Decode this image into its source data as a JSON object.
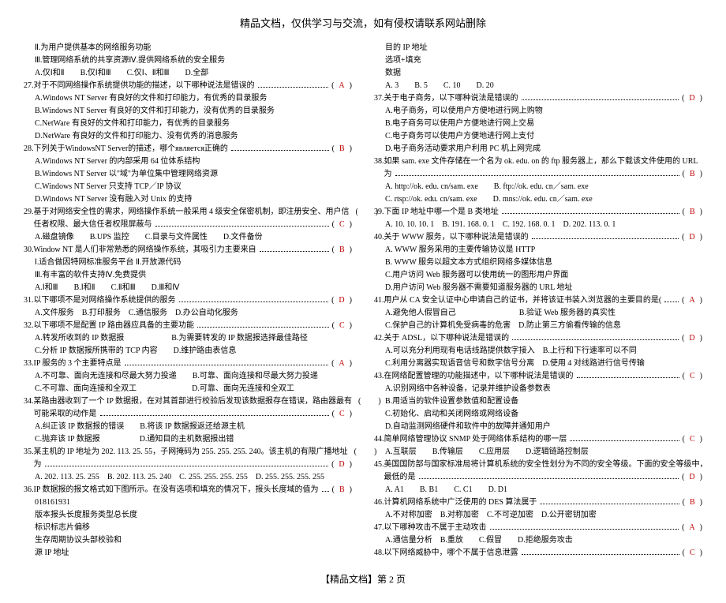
{
  "header": "精品文档，仅供学习与交流，如有侵权请联系网站删除",
  "footer": "【精品文档】第 2 页",
  "left": [
    {
      "t": "plain",
      "cls": "indent",
      "text": "Ⅱ.为用户提供基本的网络服务功能"
    },
    {
      "t": "plain",
      "cls": "indent",
      "text": "Ⅲ.管理网络系统的共享资源Ⅳ.提供网络系统的安全服务"
    },
    {
      "t": "plain",
      "cls": "indent",
      "text": "A.仅Ⅰ和Ⅱ　　B.仅Ⅰ和Ⅲ　　C.仅Ⅰ、Ⅱ和Ⅲ　　D.全部"
    },
    {
      "t": "q",
      "text": "27.对于不同网络操作系统提供功能的描述，以下哪种说法是错误的",
      "ans": "A"
    },
    {
      "t": "plain",
      "cls": "indent",
      "text": "A.Windows NT Server 有良好的文件和打印能力，有优秀的目录服务"
    },
    {
      "t": "plain",
      "cls": "indent",
      "text": "B.Windows NT Server 有良好的文件和打印能力，没有优秀的目录服务"
    },
    {
      "t": "plain",
      "cls": "indent",
      "text": "C.NetWare 有良好的文件和打印能力，有优秀的目录服务"
    },
    {
      "t": "plain",
      "cls": "indent",
      "text": "D.NetWare 有良好的文件和打印能力、没有优秀的消息服务"
    },
    {
      "t": "q",
      "text": "28.下列关于WindowsNT Server的描述，哪个является正确的",
      "ans": "B"
    },
    {
      "t": "plain",
      "cls": "indent",
      "text": "A.Windows NT Server 的内部采用 64 位体系结构"
    },
    {
      "t": "plain",
      "cls": "indent",
      "text": "B.Windows NT Server 以\"域\"为单位集中管理网络资源"
    },
    {
      "t": "plain",
      "cls": "indent",
      "text": "C.Windows NT Server 只支持 TCP／IP 协议"
    },
    {
      "t": "plain",
      "cls": "indent",
      "text": "D.Windows NT Server 没有融入对 Unix 的支持"
    },
    {
      "t": "q",
      "text": "29.基于对网络安全性的需求，网络操作系统一般采用 4 级安全保密机制，即注册安全、用户信",
      "ans": ""
    },
    {
      "t": "q",
      "text": "　 任者权限、最大信任者权限屏蔽与",
      "ans": "C"
    },
    {
      "t": "plain",
      "cls": "indent",
      "text": "A.磁盘镜像　　B.UPS 监控　　C.目录与文件属性　　D.文件备份"
    },
    {
      "t": "q",
      "text": "30.Window NT 是人们非常熟悉的网络操作系统，其吸引力主要来自",
      "ans": "B"
    },
    {
      "t": "plain",
      "cls": "indent",
      "text": "Ⅰ.适合做因特网标准服务平台 Ⅱ.开放源代码"
    },
    {
      "t": "plain",
      "cls": "indent",
      "text": "Ⅲ.有丰富的软件支持Ⅳ.免费提供"
    },
    {
      "t": "plain",
      "cls": "indent",
      "text": "A.Ⅰ和Ⅲ　　B.Ⅰ和Ⅱ　　C.Ⅱ和Ⅲ　　D.Ⅲ和Ⅳ"
    },
    {
      "t": "q",
      "text": "31.以下哪项不是对网络操作系统提供的服务",
      "ans": "D"
    },
    {
      "t": "plain",
      "cls": "indent",
      "text": "A.文件服务　B.打印服务　C.通信服务　D.办公自动化服务"
    },
    {
      "t": "q",
      "text": "32.以下哪项不是配置 IP 路由器应具备的主要功能",
      "ans": "C"
    },
    {
      "t": "plain",
      "cls": "indent",
      "text": "A.转发所收到的 IP 数据报　　　　　　B.为需要转发的 IP 数据报选择最佳路径"
    },
    {
      "t": "plain",
      "cls": "indent",
      "text": "C.分析 IP 数据报所携带的 TCP 内容　　D.维护路由表信息"
    },
    {
      "t": "q",
      "text": "33.IP 服务的 3 个主要特点是",
      "ans": "A"
    },
    {
      "t": "plain",
      "cls": "indent",
      "text": "A.不可靠、面向无连接和尽最大努力投递　　B.可靠、面向连接和尽最大努力投递"
    },
    {
      "t": "plain",
      "cls": "indent",
      "text": "C.不可靠、面向连接和全双工　　　　　　　D.可靠、面向无连接和全双工"
    },
    {
      "t": "q",
      "text": "34.某路由器收到了一个 IP 数据报，在对其首部进行校验后发现该数据报存在错误，路由器最有",
      "ans": ""
    },
    {
      "t": "q",
      "text": "　 可能采取的动作是",
      "ans": "C"
    },
    {
      "t": "plain",
      "cls": "indent",
      "text": "A.纠正该 IP 数据报的错误　　B.将该 IP 数据报返还给源主机"
    },
    {
      "t": "plain",
      "cls": "indent",
      "text": "C.抛弃该 IP 数据报　　　　　D.通知目的主机数据报出错"
    },
    {
      "t": "q",
      "text": "35.某主机的 IP 地址为 202. 113. 25. 55，子网掩码为 255. 255. 255. 240。该主机的有限广播地址",
      "ans": ""
    },
    {
      "t": "q",
      "text": "　 为",
      "ans": "D"
    },
    {
      "t": "plain",
      "cls": "indent",
      "text": "A. 202. 113. 25. 255　B. 202. 113. 25. 240　C. 255. 255. 255. 255　D. 255. 255. 255. 255"
    },
    {
      "t": "q",
      "text": "36.IP 数据报的报文格式如下图所示。在没有选项和填充的情况下，报头长度域的值为",
      "ans": "B"
    },
    {
      "t": "plain",
      "cls": "indent",
      "text": "018161931"
    },
    {
      "t": "plain",
      "cls": "indent",
      "text": "版本报头长度服务类型总长度"
    },
    {
      "t": "plain",
      "cls": "indent",
      "text": "标识标志片偏移"
    },
    {
      "t": "plain",
      "cls": "indent",
      "text": "生存周期协议头部校验和"
    },
    {
      "t": "plain",
      "cls": "indent",
      "text": "源 IP 地址"
    }
  ],
  "right": [
    {
      "t": "plain",
      "cls": "indent",
      "text": "目的 IP 地址"
    },
    {
      "t": "plain",
      "cls": "indent",
      "text": "选项+填充"
    },
    {
      "t": "plain",
      "cls": "indent",
      "text": "数据"
    },
    {
      "t": "plain",
      "cls": "indent",
      "text": "A. 3　　B. 5　　C. 10　　D. 20"
    },
    {
      "t": "q",
      "text": "37.关于电子商务，以下哪种说法是错误的",
      "ans": "D"
    },
    {
      "t": "plain",
      "cls": "indent",
      "text": "A.电子商务，可以使用户方便地进行网上购物"
    },
    {
      "t": "plain",
      "cls": "indent",
      "text": "B.电子商务可以使用户方便地进行网上交易"
    },
    {
      "t": "plain",
      "cls": "indent",
      "text": "C.电子商务可以使用户方便地进行网上支付"
    },
    {
      "t": "plain",
      "cls": "indent",
      "text": "D.电子商务活动要求用户利用 PC 机上网完成"
    },
    {
      "t": "plain",
      "text": "38.如果 sam. exe 文件存储在一个名为 ok. edu. on 的 ftp 服务器上，那么下载该文件使用的 URL"
    },
    {
      "t": "q",
      "text": "　 为",
      "ans": "B"
    },
    {
      "t": "plain",
      "cls": "indent",
      "text": "A. http://ok. edu. cn/sam. exe　　B. ftp://ok. edu. cn／sam. exe"
    },
    {
      "t": "plain",
      "cls": "indent",
      "text": "C. rtsp://ok. edu. cn/sam. exe　　D. mns://ok. edu. cn／sam. exe"
    },
    {
      "t": "q",
      "text": "39.下面 IP 地址中哪一个是 B 类地址",
      "ans": "B"
    },
    {
      "t": "plain",
      "cls": "indent",
      "text": "A. 10. 10. 10. 1　B. 191. 168. 0. 1　C. 192. 168. 0. 1　D. 202. 113. 0. 1"
    },
    {
      "t": "q",
      "text": "40.关于 WWW 服务，以下哪种说法是错误的",
      "ans": "D"
    },
    {
      "t": "plain",
      "cls": "indent",
      "text": "A. WWW 服务采用的主要传输协议是 HTTP"
    },
    {
      "t": "plain",
      "cls": "indent",
      "text": "B. WWW 服务以超文本方式组织网络多媒体信息"
    },
    {
      "t": "plain",
      "cls": "indent",
      "text": "C.用户访问 Web 服务器可以使用统一的图形用户界面"
    },
    {
      "t": "plain",
      "cls": "indent",
      "text": "D.用户访问 Web 服务器不需要知道服务器的 URL 地址"
    },
    {
      "t": "q",
      "text": "41.用户从 CA 安全认证中心申请自己的证书，并将该证书装入浏览器的主要目的是(",
      "ans": "A"
    },
    {
      "t": "plain",
      "cls": "indent",
      "text": "A.避免他人假冒自己　　　　　　　　B.验证 Web 服务器的真实性"
    },
    {
      "t": "plain",
      "cls": "indent",
      "text": "C.保护自己的计算机免受病毒的危害　D.防止第三方偷看传输的信息"
    },
    {
      "t": "q",
      "text": "42.关于 ADSL，以下哪种说法是错误的",
      "ans": "D"
    },
    {
      "t": "plain",
      "cls": "indent",
      "text": "A.可以充分利用现有电话线路提供数字接入　B.上行和下行速率可以不同"
    },
    {
      "t": "plain",
      "cls": "indent",
      "text": "C.利用分离器实现语音信号和数字信号分离　D.使用 4 对线路进行信号传输"
    },
    {
      "t": "q",
      "text": "43.在网络配置管理的功能描述中，以下哪种说法是错误的",
      "ans": "C"
    },
    {
      "t": "plain",
      "cls": "indent",
      "text": "A.识别网络中各种设备，记录并维护设备参数表"
    },
    {
      "t": "plain",
      "cls": "indent",
      "text": "B.用适当的软件设置参数值和配置设备"
    },
    {
      "t": "plain",
      "cls": "indent",
      "text": "C.初始化、启动和关闭网络或网络设备"
    },
    {
      "t": "plain",
      "cls": "indent",
      "text": "D.自动监测网络硬件和软件中的故障并通知用户"
    },
    {
      "t": "q",
      "text": "44.简单网络管理协议 SNMP 处于网络体系结构的哪一层",
      "ans": "C"
    },
    {
      "t": "plain",
      "cls": "indent",
      "text": "A.互联层　　B.传输层　　C.应用层　　D.逻辑链路控制层"
    },
    {
      "t": "plain",
      "text": "45.美国国防部与国家标准局将计算机系统的安全性划分为不同的安全等级。下面的安全等级中，"
    },
    {
      "t": "q",
      "text": "　 最低的是",
      "ans": "D"
    },
    {
      "t": "plain",
      "cls": "indent",
      "text": "A. A1　　B. B1　　C. C1　　D. D1"
    },
    {
      "t": "q",
      "text": "46.计算机网络系统中广泛使用的 DES 算法属于",
      "ans": "B"
    },
    {
      "t": "plain",
      "cls": "indent",
      "text": "A.不对称加密　B.对称加密　C.不可逆加密　D.公开密钥加密"
    },
    {
      "t": "q",
      "text": "47.以下哪种攻击不属于主动攻击",
      "ans": "A"
    },
    {
      "t": "plain",
      "cls": "indent",
      "text": "A.通信量分析　B.重放　　C.假冒　　D.拒绝服务攻击"
    },
    {
      "t": "q",
      "text": "48.以下网络威胁中，哪个不属于信息泄露",
      "ans": "C"
    }
  ]
}
